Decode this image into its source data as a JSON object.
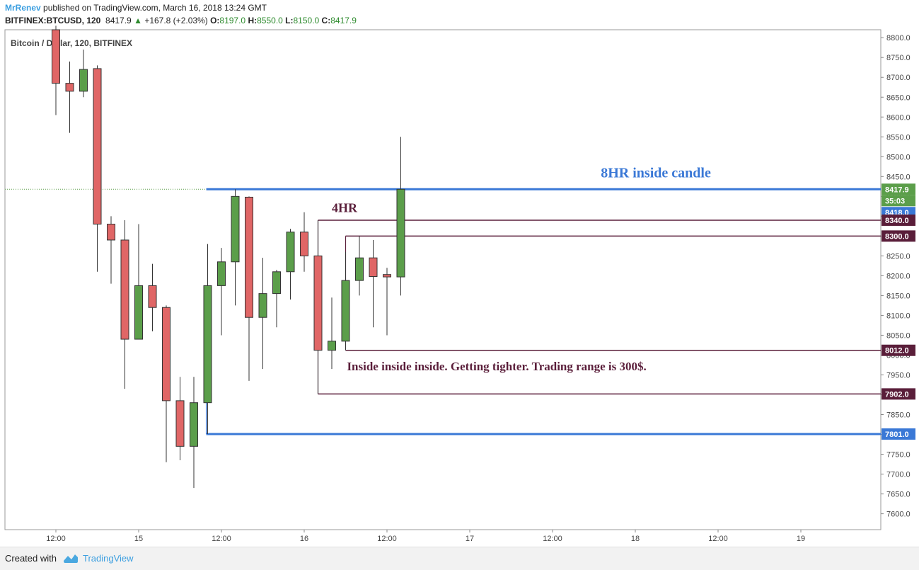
{
  "header": {
    "author": "MrRenev",
    "published": "published on TradingView.com, March 16, 2018 13:24 GMT",
    "symbol": "BITFINEX:BTCUSD, 120",
    "last": "8417.9",
    "change": "+167.8 (+2.03%)",
    "o_label": "O:",
    "o": "8197.0",
    "h_label": "H:",
    "h": "8550.0",
    "l_label": "L:",
    "l": "8150.0",
    "c_label": "C:",
    "c": "8417.9"
  },
  "footer": {
    "created_with": "Created with",
    "brand": "TradingView"
  },
  "colors": {
    "up": "#5b9e4a",
    "down": "#e06666",
    "blue_line": "#3a78d6",
    "maroon": "#5a1e3a",
    "last_price": "#5b9e4a"
  },
  "chart_data": {
    "type": "candlestick",
    "title": "Bitcoin / Dollar, 120, BITFINEX",
    "ylim": [
      7560,
      8820
    ],
    "yticks": [
      7600,
      7650,
      7700,
      7750,
      7800,
      7850,
      7900,
      7950,
      8000,
      8050,
      8100,
      8150,
      8200,
      8250,
      8300,
      8350,
      8400,
      8450,
      8500,
      8550,
      8600,
      8650,
      8700,
      8750,
      8800
    ],
    "ytick_labels": [
      "7600.0",
      "7650.0",
      "7700.0",
      "7750.0",
      "7800.0",
      "7850.0",
      "7900.0",
      "7950.0",
      "8000.0",
      "8050.0",
      "8100.0",
      "8150.0",
      "8200.0",
      "8250.0",
      "8300.0",
      "8350.0",
      "8400.0",
      "8450.0",
      "8500.0",
      "8550.0",
      "8600.0",
      "8650.0",
      "8700.0",
      "8750.0",
      "8800.0"
    ],
    "xtick_slots": [
      0,
      6,
      12,
      18,
      24,
      30,
      36,
      42,
      48,
      54
    ],
    "xtick_labels": [
      "12:00",
      "15",
      "12:00",
      "16",
      "12:00",
      "17",
      "12:00",
      "18",
      "12:00",
      "19"
    ],
    "candles": [
      {
        "o": 8820,
        "h": 8830,
        "l": 8605,
        "c": 8685
      },
      {
        "o": 8685,
        "h": 8740,
        "l": 8560,
        "c": 8665
      },
      {
        "o": 8665,
        "h": 8770,
        "l": 8650,
        "c": 8720
      },
      {
        "o": 8722,
        "h": 8730,
        "l": 8210,
        "c": 8330
      },
      {
        "o": 8330,
        "h": 8350,
        "l": 8180,
        "c": 8290
      },
      {
        "o": 8290,
        "h": 8340,
        "l": 7915,
        "c": 8040
      },
      {
        "o": 8040,
        "h": 8330,
        "l": 8040,
        "c": 8175
      },
      {
        "o": 8175,
        "h": 8230,
        "l": 8060,
        "c": 8120
      },
      {
        "o": 8120,
        "h": 8125,
        "l": 7730,
        "c": 7885
      },
      {
        "o": 7885,
        "h": 7945,
        "l": 7735,
        "c": 7770
      },
      {
        "o": 7770,
        "h": 7945,
        "l": 7665,
        "c": 7880
      },
      {
        "o": 7880,
        "h": 8280,
        "l": 7801,
        "c": 8175
      },
      {
        "o": 8175,
        "h": 8270,
        "l": 8050,
        "c": 8235
      },
      {
        "o": 8235,
        "h": 8418,
        "l": 8125,
        "c": 8400
      },
      {
        "o": 8398,
        "h": 8400,
        "l": 7935,
        "c": 8095
      },
      {
        "o": 8095,
        "h": 8245,
        "l": 7965,
        "c": 8155
      },
      {
        "o": 8155,
        "h": 8215,
        "l": 8070,
        "c": 8210
      },
      {
        "o": 8210,
        "h": 8318,
        "l": 8140,
        "c": 8310
      },
      {
        "o": 8310,
        "h": 8360,
        "l": 8210,
        "c": 8250
      },
      {
        "o": 8250,
        "h": 8340,
        "l": 7902,
        "c": 8012
      },
      {
        "o": 8012,
        "h": 8145,
        "l": 7965,
        "c": 8035
      },
      {
        "o": 8035,
        "h": 8260,
        "l": 8012,
        "c": 8188
      },
      {
        "o": 8188,
        "h": 8300,
        "l": 8150,
        "c": 8245
      },
      {
        "o": 8245,
        "h": 8290,
        "l": 8070,
        "c": 8198
      },
      {
        "o": 8203,
        "h": 8220,
        "l": 8050,
        "c": 8197
      },
      {
        "o": 8197,
        "h": 8550,
        "l": 8150,
        "c": 8417.9
      }
    ],
    "last_price_label": "8417.9",
    "countdown": "35:03",
    "levels": [
      {
        "price": 8418,
        "label": "8418.0",
        "color": "#3a78d6",
        "from_slot": 10.9,
        "width": 3
      },
      {
        "price": 8340,
        "label": "8340.0",
        "color": "#5a1e3a",
        "from_slot": 19.0,
        "width": 1.5
      },
      {
        "price": 8300,
        "label": "8300.0",
        "color": "#5a1e3a",
        "from_slot": 21.0,
        "width": 1.5
      },
      {
        "price": 8012,
        "label": "8012.0",
        "color": "#5a1e3a",
        "from_slot": 21.0,
        "width": 1.5
      },
      {
        "price": 7902,
        "label": "7902.0",
        "color": "#5a1e3a",
        "from_slot": 19.0,
        "width": 1.5
      },
      {
        "price": 7801,
        "label": "7801.0",
        "color": "#3a78d6",
        "from_slot": 10.9,
        "width": 3
      }
    ],
    "annotations": [
      {
        "text": "8HR inside candle",
        "price": 8448,
        "slot": 39.5,
        "color": "#3a78d6",
        "size": 20
      },
      {
        "text": "4HR",
        "price": 8360,
        "slot": 20.0,
        "color": "#5a1e3a",
        "size": 18
      },
      {
        "text": "Inside inside inside. Getting tighter. Trading range is 300$.",
        "price": 7962,
        "slot": 21.1,
        "color": "#5a1e3a",
        "size": 17
      }
    ]
  }
}
